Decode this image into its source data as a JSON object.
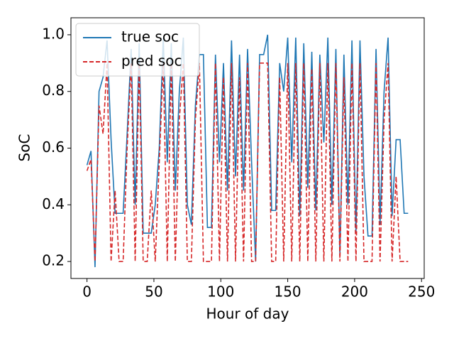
{
  "chart_data": {
    "type": "line",
    "x_label": "Hour of day",
    "y_label": "SoC",
    "x": [
      0,
      3,
      6,
      9,
      12,
      15,
      18,
      21,
      24,
      27,
      30,
      33,
      36,
      39,
      42,
      45,
      48,
      51,
      54,
      57,
      60,
      63,
      66,
      69,
      72,
      75,
      78,
      81,
      84,
      87,
      90,
      93,
      96,
      99,
      102,
      105,
      108,
      111,
      114,
      117,
      120,
      123,
      126,
      129,
      132,
      135,
      138,
      141,
      144,
      147,
      150,
      153,
      156,
      159,
      162,
      165,
      168,
      171,
      174,
      177,
      180,
      183,
      186,
      189,
      192,
      195,
      198,
      201,
      204,
      207,
      210,
      213,
      216,
      219,
      222,
      225,
      228,
      231,
      234,
      237,
      240
    ],
    "series": [
      {
        "name": "true soc",
        "color": "#1f77b4",
        "dashed": false,
        "values": [
          0.54,
          0.59,
          0.18,
          0.8,
          0.85,
          0.98,
          0.63,
          0.37,
          0.37,
          0.37,
          0.65,
          0.95,
          0.4,
          0.97,
          0.3,
          0.3,
          0.3,
          0.4,
          0.6,
          0.99,
          0.55,
          0.97,
          0.45,
          0.8,
          0.99,
          0.4,
          0.33,
          0.75,
          0.93,
          0.93,
          0.32,
          0.32,
          0.93,
          0.55,
          0.9,
          0.45,
          0.98,
          0.5,
          0.93,
          0.45,
          0.95,
          0.55,
          0.2,
          0.93,
          0.93,
          1.0,
          0.38,
          0.38,
          0.9,
          0.8,
          0.99,
          0.55,
          0.99,
          0.36,
          0.97,
          0.46,
          0.94,
          0.38,
          0.93,
          0.62,
          0.99,
          0.4,
          0.95,
          0.22,
          0.93,
          0.4,
          0.98,
          0.3,
          0.98,
          0.5,
          0.29,
          0.29,
          0.95,
          0.33,
          0.8,
          0.99,
          0.36,
          0.63,
          0.63,
          0.37,
          0.37
        ]
      },
      {
        "name": "pred soc",
        "color": "#d62728",
        "dashed": true,
        "values": [
          0.52,
          0.56,
          0.2,
          0.75,
          0.65,
          0.9,
          0.2,
          0.45,
          0.2,
          0.2,
          0.6,
          0.9,
          0.2,
          0.9,
          0.2,
          0.2,
          0.45,
          0.2,
          0.55,
          0.9,
          0.2,
          0.9,
          0.2,
          0.7,
          0.9,
          0.2,
          0.2,
          0.7,
          0.9,
          0.2,
          0.2,
          0.2,
          0.9,
          0.2,
          0.85,
          0.2,
          0.9,
          0.2,
          0.85,
          0.2,
          0.9,
          0.2,
          0.2,
          0.9,
          0.9,
          0.9,
          0.2,
          0.2,
          0.85,
          0.2,
          0.9,
          0.2,
          0.9,
          0.2,
          0.9,
          0.2,
          0.88,
          0.2,
          0.9,
          0.2,
          0.9,
          0.2,
          0.9,
          0.2,
          0.85,
          0.2,
          0.9,
          0.2,
          0.9,
          0.2,
          0.2,
          0.2,
          0.9,
          0.2,
          0.7,
          0.9,
          0.2,
          0.5,
          0.2,
          0.2,
          0.2
        ]
      }
    ],
    "xlim": [
      -12,
      252
    ],
    "xticks": [
      0,
      50,
      100,
      150,
      200,
      250
    ],
    "ylim": [
      0.14,
      1.06
    ],
    "yticks": [
      {
        "value": 0.2,
        "label": "0.2"
      },
      {
        "value": 0.4,
        "label": "0.4"
      },
      {
        "value": 0.6,
        "label": "0.6"
      },
      {
        "value": 0.8,
        "label": "0.8"
      },
      {
        "value": 1.0,
        "label": "1.0"
      }
    ],
    "legend": "upper left",
    "grid": false
  }
}
